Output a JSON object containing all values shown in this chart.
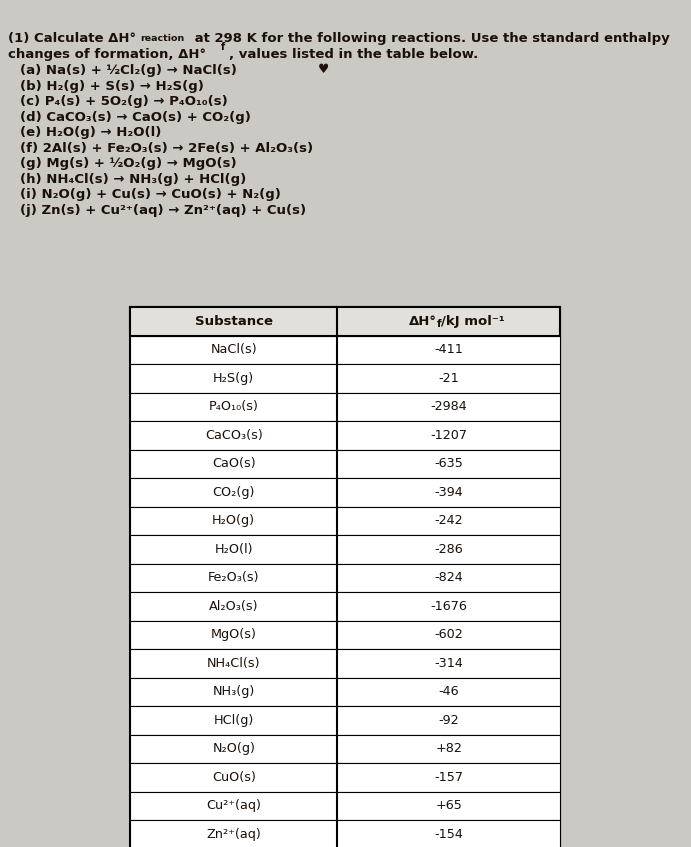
{
  "bg_color": "#cbc9c3",
  "text_color": "#1a1009",
  "header_text_intro": "(1) Calculate ΔH°",
  "header_superscript": "reaction",
  "header_text_mid": " at 298 K for the following reactions. Use the standard enthalpy",
  "header_line2a": "changes of formation, ΔH",
  "header_line2b": "°",
  "header_line2c": "f",
  "header_line2d": ", values listed in the table below.",
  "reactions": [
    "(a) Na(s) + ½Cl₂(g) → NaCl(s)",
    "(b) H₂(g) + S(s) → H₂S(g)",
    "(c) P₄(s) + 5O₂(g) → P₄O₁₀(s)",
    "(d) CaCO₃(s) → CaO(s) + CO₂(g)",
    "(e) H₂O(g) → H₂O(l)",
    "(f) 2Al(s) + Fe₂O₃(s) → 2Fe(s) + Al₂O₃(s)",
    "(g) Mg(s) + ½O₂(g) → MgO(s)",
    "(h) NH₄Cl(s) → NH₃(g) + HCl(g)",
    "(i) N₂O(g) + Cu(s) → CuO(s) + N₂(g)",
    "(j) Zn(s) + Cu²⁺(aq) → Zn²⁺(aq) + Cu(s)"
  ],
  "col1_header": "Substance",
  "col2_header": "ΔH°ₑ/kJ mol⁻¹",
  "substances": [
    "NaCl(s)",
    "H₂S(g)",
    "P₄O₁₀(s)",
    "CaCO₃(s)",
    "CaO(s)",
    "CO₂(g)",
    "H₂O(g)",
    "H₂O(l)",
    "Fe₂O₃(s)",
    "Al₂O₃(s)",
    "MgO(s)",
    "NH₄Cl(s)",
    "NH₃(g)",
    "HCl(g)",
    "N₂O(g)",
    "CuO(s)",
    "Cu²⁺(aq)",
    "Zn²⁺(aq)"
  ],
  "values": [
    "-411",
    "-21",
    "-2984",
    "-1207",
    "-635",
    "-394",
    "-242",
    "-286",
    "-824",
    "-1676",
    "-602",
    "-314",
    "-46",
    "-92",
    "+82",
    "-157",
    "+65",
    "-154"
  ]
}
